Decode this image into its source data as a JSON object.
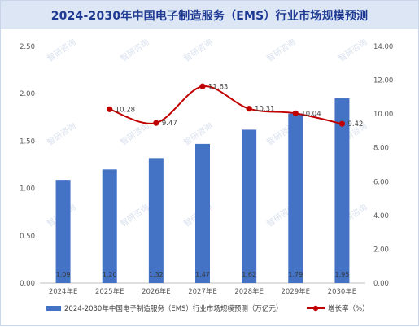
{
  "chart_data": {
    "type": "bar",
    "title": "2024-2030年中国电子制造服务（EMS）行业市场规模预测",
    "categories": [
      "2024年E",
      "2025年E",
      "2026年E",
      "2027年E",
      "2028年E",
      "2029年E",
      "2030年E"
    ],
    "series": [
      {
        "name": "2024-2030年中国电子制造服务（EMS）行业市场规模预测（万亿元）",
        "type": "bar",
        "axis": "left",
        "color": "#4472c4",
        "values": [
          1.09,
          1.2,
          1.32,
          1.47,
          1.62,
          1.79,
          1.95
        ],
        "labels": [
          "1.09",
          "1.20",
          "1.32",
          "1.47",
          "1.62",
          "1.79",
          "1.95"
        ]
      },
      {
        "name": "增长率（%）",
        "type": "line",
        "axis": "right",
        "color": "#c00000",
        "values": [
          null,
          10.28,
          9.47,
          11.63,
          10.31,
          10.04,
          9.42
        ],
        "labels": [
          "",
          "10.28",
          "9.47",
          "11.63",
          "10.31",
          "10.04",
          "9.42"
        ]
      }
    ],
    "ylim_left": [
      0,
      2.5
    ],
    "yticks_left": [
      "0.00",
      "0.50",
      "1.00",
      "1.50",
      "2.00",
      "2.50"
    ],
    "ylim_right": [
      0,
      14
    ],
    "yticks_right": [
      "0.00",
      "2.00",
      "4.00",
      "6.00",
      "8.00",
      "10.00",
      "12.00",
      "14.00"
    ],
    "grid": false,
    "legend_position": "bottom",
    "watermark": "智研咨询"
  }
}
